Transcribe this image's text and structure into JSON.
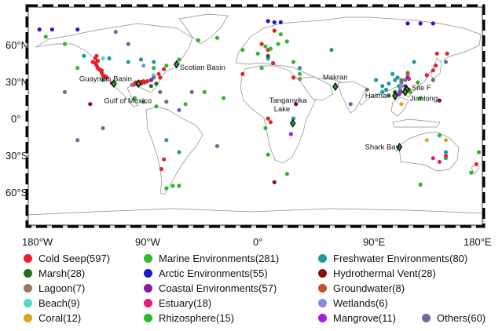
{
  "map": {
    "lat_labels": [
      "60°N",
      "30°N",
      "0°",
      "30°S",
      "60°S"
    ],
    "lon_labels": [
      "180°W",
      "90°W",
      "0°",
      "90°E",
      "180°E"
    ],
    "sites": [
      {
        "name": "Guaymas Basin",
        "lon": -111.4,
        "lat": 27.0
      },
      {
        "name": "Gulf of Mexico",
        "lon": -92.0,
        "lat": 27.0
      },
      {
        "name": "Scotian Basin",
        "lon": -62.0,
        "lat": 43.0
      },
      {
        "name": "Tanganyika Lake",
        "lon": 29.5,
        "lat": -6.0
      },
      {
        "name": "Makran",
        "lon": 63.0,
        "lat": 24.5
      },
      {
        "name": "Haima",
        "lon": 110.0,
        "lat": 16.8
      },
      {
        "name": "Site F",
        "lon": 119.3,
        "lat": 22.1
      },
      {
        "name": "Jiaolong",
        "lon": 118.0,
        "lat": 20.0
      },
      {
        "name": "Shark Bay",
        "lon": 113.5,
        "lat": -25.8
      }
    ]
  },
  "legend": {
    "items": [
      {
        "label": "Cold Seep(597)",
        "color": "#e8202a"
      },
      {
        "label": "Marine Environments(281)",
        "color": "#2db82d"
      },
      {
        "label": "Freshwater Environments(80)",
        "color": "#1e9a9a"
      },
      {
        "label": "Marsh(28)",
        "color": "#2a6a1a"
      },
      {
        "label": "Arctic Environments(55)",
        "color": "#1a1acc"
      },
      {
        "label": "Hydrothermal Vent(28)",
        "color": "#8a1010"
      },
      {
        "label": "Lagoon(7)",
        "color": "#9a7a5a"
      },
      {
        "label": "Coastal Environments(57)",
        "color": "#8a1aa0"
      },
      {
        "label": "Groundwater(8)",
        "color": "#c8502a"
      },
      {
        "label": "Beach(9)",
        "color": "#50d8c8"
      },
      {
        "label": "Estuary(18)",
        "color": "#e81880"
      },
      {
        "label": "Wetlands(6)",
        "color": "#8a8ae8"
      },
      {
        "label": "Coral(12)",
        "color": "#d8a820"
      },
      {
        "label": "Rhizosphere(15)",
        "color": "#2db82d"
      },
      {
        "label": "Mangrove(11)",
        "color": "#a020e0"
      },
      {
        "label": "Others(60)",
        "color": "#6a6a9a"
      }
    ]
  },
  "points": [
    {
      "cat": 0,
      "lon": -128,
      "lat": 45
    },
    {
      "cat": 0,
      "lon": -126,
      "lat": 44
    },
    {
      "cat": 0,
      "lon": -125,
      "lat": 42
    },
    {
      "cat": 0,
      "lon": -124,
      "lat": 40
    },
    {
      "cat": 0,
      "lon": -122,
      "lat": 38
    },
    {
      "cat": 0,
      "lon": -121,
      "lat": 36
    },
    {
      "cat": 0,
      "lon": -120,
      "lat": 34
    },
    {
      "cat": 0,
      "lon": -119,
      "lat": 33
    },
    {
      "cat": 0,
      "lon": -118,
      "lat": 33
    },
    {
      "cat": 0,
      "lon": -124,
      "lat": 46
    },
    {
      "cat": 0,
      "lon": -126,
      "lat": 48
    },
    {
      "cat": 0,
      "lon": -125,
      "lat": 50
    },
    {
      "cat": 0,
      "lon": -123,
      "lat": 39
    },
    {
      "cat": 0,
      "lon": -121,
      "lat": 38
    },
    {
      "cat": 0,
      "lon": -117,
      "lat": 32
    },
    {
      "cat": 0,
      "lon": -95,
      "lat": 27
    },
    {
      "cat": 0,
      "lon": -94,
      "lat": 28
    },
    {
      "cat": 0,
      "lon": -92,
      "lat": 27.5
    },
    {
      "cat": 0,
      "lon": -91,
      "lat": 28
    },
    {
      "cat": 0,
      "lon": -90,
      "lat": 28.5
    },
    {
      "cat": 0,
      "lon": -89,
      "lat": 28
    },
    {
      "cat": 0,
      "lon": -93,
      "lat": 26.5
    },
    {
      "cat": 0,
      "lon": -90,
      "lat": 27
    },
    {
      "cat": 0,
      "lon": -88,
      "lat": 29
    },
    {
      "cat": 0,
      "lon": -87,
      "lat": 28
    },
    {
      "cat": 0,
      "lon": -85,
      "lat": 29
    },
    {
      "cat": 0,
      "lon": -96,
      "lat": 26
    },
    {
      "cat": 0,
      "lon": -75,
      "lat": 32
    },
    {
      "cat": 0,
      "lon": -76,
      "lat": 35
    },
    {
      "cat": 0,
      "lon": -72,
      "lat": 39
    },
    {
      "cat": 0,
      "lon": 5,
      "lat": 60
    },
    {
      "cat": 0,
      "lon": 15,
      "lat": 71
    },
    {
      "cat": 0,
      "lon": 10,
      "lat": 55
    },
    {
      "cat": 0,
      "lon": 14,
      "lat": 44
    },
    {
      "cat": 0,
      "lon": 30,
      "lat": 32
    },
    {
      "cat": 0,
      "lon": -10,
      "lat": 35
    },
    {
      "cat": 0,
      "lon": 135,
      "lat": 34
    },
    {
      "cat": 0,
      "lon": 140,
      "lat": 38
    },
    {
      "cat": 0,
      "lon": 142,
      "lat": 42
    },
    {
      "cat": 0,
      "lon": 121,
      "lat": 22
    },
    {
      "cat": 0,
      "lon": 110,
      "lat": 18
    },
    {
      "cat": 0,
      "lon": 151,
      "lat": 52
    },
    {
      "cat": 0,
      "lon": 143,
      "lat": 52
    },
    {
      "cat": 0,
      "lon": -72,
      "lat": -36
    },
    {
      "cat": 0,
      "lon": -74,
      "lat": -44
    },
    {
      "cat": 0,
      "lon": 174,
      "lat": -40
    },
    {
      "cat": 0,
      "lon": 12,
      "lat": -5
    },
    {
      "cat": 0,
      "lon": 10,
      "lat": -2
    },
    {
      "cat": 0,
      "lon": 63,
      "lat": 24
    },
    {
      "cat": 0,
      "lon": -113,
      "lat": 27.5
    },
    {
      "cat": 1,
      "lon": -150,
      "lat": 60
    },
    {
      "cat": 1,
      "lon": -165,
      "lat": 66
    },
    {
      "cat": 1,
      "lon": -140,
      "lat": 40
    },
    {
      "cat": 1,
      "lon": -80,
      "lat": 40
    },
    {
      "cat": 1,
      "lon": -70,
      "lat": 42
    },
    {
      "cat": 1,
      "lon": -60,
      "lat": 47
    },
    {
      "cat": 1,
      "lon": -45,
      "lat": 63
    },
    {
      "cat": 1,
      "lon": -30,
      "lat": 65
    },
    {
      "cat": 1,
      "lon": -10,
      "lat": 55
    },
    {
      "cat": 1,
      "lon": 2,
      "lat": 52
    },
    {
      "cat": 1,
      "lon": 8,
      "lat": 58
    },
    {
      "cat": 1,
      "lon": 12,
      "lat": 56
    },
    {
      "cat": 1,
      "lon": 18,
      "lat": 60
    },
    {
      "cat": 1,
      "lon": 25,
      "lat": 62
    },
    {
      "cat": 1,
      "lon": 20,
      "lat": 68
    },
    {
      "cat": 1,
      "lon": 30,
      "lat": 45
    },
    {
      "cat": 1,
      "lon": 35,
      "lat": 35
    },
    {
      "cat": 1,
      "lon": 5,
      "lat": 40
    },
    {
      "cat": 1,
      "lon": -40,
      "lat": 20
    },
    {
      "cat": 1,
      "lon": -25,
      "lat": 15
    },
    {
      "cat": 1,
      "lon": -55,
      "lat": 10
    },
    {
      "cat": 1,
      "lon": -88,
      "lat": 12
    },
    {
      "cat": 1,
      "lon": -78,
      "lat": 8
    },
    {
      "cat": 1,
      "lon": 8,
      "lat": -10
    },
    {
      "cat": 1,
      "lon": 10,
      "lat": -32
    },
    {
      "cat": 1,
      "lon": 25,
      "lat": -48
    },
    {
      "cat": 1,
      "lon": -70,
      "lat": -60
    },
    {
      "cat": 1,
      "lon": -65,
      "lat": -58
    },
    {
      "cat": 1,
      "lon": -60,
      "lat": -58
    },
    {
      "cat": 1,
      "lon": 115,
      "lat": 20
    },
    {
      "cat": 1,
      "lon": 122,
      "lat": 20
    },
    {
      "cat": 1,
      "lon": 128,
      "lat": 28
    },
    {
      "cat": 1,
      "lon": 130,
      "lat": 15
    },
    {
      "cat": 1,
      "lon": 145,
      "lat": -16
    },
    {
      "cat": 1,
      "lon": 150,
      "lat": -35
    },
    {
      "cat": 1,
      "lon": 170,
      "lat": -47
    },
    {
      "cat": 1,
      "lon": 176,
      "lat": -30
    },
    {
      "cat": 1,
      "lon": 130,
      "lat": -57
    },
    {
      "cat": 1,
      "lon": -95,
      "lat": 15
    },
    {
      "cat": 2,
      "lon": -135,
      "lat": 50
    },
    {
      "cat": 2,
      "lon": -115,
      "lat": 48
    },
    {
      "cat": 2,
      "lon": -100,
      "lat": 45
    },
    {
      "cat": 2,
      "lon": -90,
      "lat": 47
    },
    {
      "cat": 2,
      "lon": -80,
      "lat": 45
    },
    {
      "cat": 2,
      "lon": -120,
      "lat": 30
    },
    {
      "cat": 2,
      "lon": -70,
      "lat": -20
    },
    {
      "cat": 2,
      "lon": -60,
      "lat": -30
    },
    {
      "cat": 2,
      "lon": 10,
      "lat": 48
    },
    {
      "cat": 2,
      "lon": 35,
      "lat": 40
    },
    {
      "cat": 2,
      "lon": 110,
      "lat": 30
    },
    {
      "cat": 2,
      "lon": 112,
      "lat": 32
    },
    {
      "cat": 2,
      "lon": 115,
      "lat": 28
    },
    {
      "cat": 2,
      "lon": 118,
      "lat": 30
    },
    {
      "cat": 2,
      "lon": 105,
      "lat": 27
    },
    {
      "cat": 2,
      "lon": 100,
      "lat": 25
    },
    {
      "cat": 2,
      "lon": 95,
      "lat": 30
    },
    {
      "cat": 2,
      "lon": 108,
      "lat": 35
    },
    {
      "cat": 2,
      "lon": 120,
      "lat": 36
    },
    {
      "cat": 2,
      "lon": 113,
      "lat": 25
    },
    {
      "cat": 2,
      "lon": 100,
      "lat": 20
    },
    {
      "cat": 2,
      "lon": 103,
      "lat": 22
    },
    {
      "cat": 2,
      "lon": 125,
      "lat": 45
    },
    {
      "cat": 2,
      "lon": 150,
      "lat": -30
    },
    {
      "cat": 2,
      "lon": 30,
      "lat": -2
    },
    {
      "cat": 2,
      "lon": 60,
      "lat": 55
    },
    {
      "cat": 3,
      "lon": 105,
      "lat": 17
    },
    {
      "cat": 3,
      "lon": 110,
      "lat": 20
    },
    {
      "cat": 3,
      "lon": 10,
      "lat": 50
    },
    {
      "cat": 3,
      "lon": -78,
      "lat": 27
    },
    {
      "cat": 3,
      "lon": -82,
      "lat": 25
    },
    {
      "cat": 4,
      "lon": -170,
      "lat": 72
    },
    {
      "cat": 4,
      "lon": -160,
      "lat": 72
    },
    {
      "cat": 4,
      "lon": -140,
      "lat": 72
    },
    {
      "cat": 4,
      "lon": 10,
      "lat": 79
    },
    {
      "cat": 4,
      "lon": 15,
      "lat": 78
    },
    {
      "cat": 4,
      "lon": 20,
      "lat": 78
    },
    {
      "cat": 4,
      "lon": 120,
      "lat": 77
    },
    {
      "cat": 4,
      "lon": 130,
      "lat": 77
    },
    {
      "cat": 4,
      "lon": 140,
      "lat": 77
    },
    {
      "cat": 5,
      "lon": -112,
      "lat": 27
    },
    {
      "cat": 5,
      "lon": 32,
      "lat": 10
    },
    {
      "cat": 5,
      "lon": 145,
      "lat": 13
    },
    {
      "cat": 5,
      "lon": 15,
      "lat": -55
    },
    {
      "cat": 5,
      "lon": -130,
      "lat": 10
    },
    {
      "cat": 6,
      "lon": -97,
      "lat": 26
    },
    {
      "cat": 6,
      "lon": 35,
      "lat": 31
    },
    {
      "cat": 7,
      "lon": -82,
      "lat": 30
    },
    {
      "cat": 7,
      "lon": 120,
      "lat": 32
    },
    {
      "cat": 7,
      "lon": 118,
      "lat": 25
    },
    {
      "cat": 8,
      "lon": 120,
      "lat": 35
    },
    {
      "cat": 8,
      "lon": 115,
      "lat": 30
    },
    {
      "cat": 9,
      "lon": -80,
      "lat": 34
    },
    {
      "cat": 9,
      "lon": -120,
      "lat": 48
    },
    {
      "cat": 10,
      "lon": 140,
      "lat": -35
    },
    {
      "cat": 10,
      "lon": 145,
      "lat": -38
    },
    {
      "cat": 10,
      "lon": 150,
      "lat": -33
    },
    {
      "cat": 10,
      "lon": 118,
      "lat": 22
    },
    {
      "cat": 10,
      "lon": 121,
      "lat": 31
    },
    {
      "cat": 11,
      "lon": -88,
      "lat": 42
    },
    {
      "cat": 11,
      "lon": 115,
      "lat": 25
    },
    {
      "cat": 12,
      "lon": 115,
      "lat": 10
    },
    {
      "cat": 12,
      "lon": 150,
      "lat": -20
    },
    {
      "cat": 12,
      "lon": 135,
      "lat": -20
    },
    {
      "cat": 13,
      "lon": 114,
      "lat": 22
    },
    {
      "cat": 13,
      "lon": 112,
      "lat": 18
    },
    {
      "cat": 14,
      "lon": 114,
      "lat": 20
    },
    {
      "cat": 14,
      "lon": 113,
      "lat": 18
    },
    {
      "cat": 14,
      "lon": 28,
      "lat": -15
    },
    {
      "cat": 15,
      "lon": -110,
      "lat": 70
    },
    {
      "cat": 15,
      "lon": -100,
      "lat": 60
    },
    {
      "cat": 15,
      "lon": -80,
      "lat": 32
    },
    {
      "cat": 15,
      "lon": -75,
      "lat": 20
    },
    {
      "cat": 15,
      "lon": -70,
      "lat": 12
    },
    {
      "cat": 15,
      "lon": -60,
      "lat": 5
    },
    {
      "cat": 15,
      "lon": -50,
      "lat": 20
    },
    {
      "cat": 15,
      "lon": -140,
      "lat": -20
    },
    {
      "cat": 15,
      "lon": -120,
      "lat": -10
    },
    {
      "cat": 15,
      "lon": -30,
      "lat": -25
    },
    {
      "cat": 15,
      "lon": 75,
      "lat": 10
    },
    {
      "cat": 15,
      "lon": 88,
      "lat": 22
    },
    {
      "cat": 15,
      "lon": 140,
      "lat": 30
    },
    {
      "cat": 15,
      "lon": 150,
      "lat": 45
    },
    {
      "cat": 15,
      "lon": -150,
      "lat": 20
    }
  ]
}
